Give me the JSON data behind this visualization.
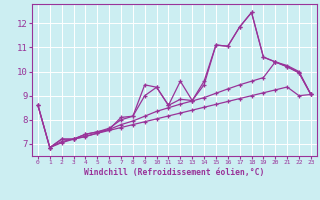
{
  "background_color": "#cceef2",
  "grid_color": "#ffffff",
  "line_color": "#993399",
  "xlabel": "Windchill (Refroidissement éolien,°C)",
  "ylabel_ticks": [
    7,
    8,
    9,
    10,
    11,
    12
  ],
  "xlim": [
    -0.5,
    23.5
  ],
  "ylim": [
    6.5,
    12.8
  ],
  "lines": [
    {
      "x": [
        0,
        1,
        2,
        3,
        4,
        5,
        6,
        7,
        8,
        9,
        10,
        11,
        12,
        13,
        14,
        15,
        16,
        17,
        18,
        19,
        20,
        21,
        22,
        23
      ],
      "y": [
        8.6,
        6.85,
        7.2,
        7.2,
        7.4,
        7.5,
        7.6,
        8.1,
        8.15,
        9.45,
        9.35,
        8.6,
        9.6,
        8.8,
        9.6,
        11.1,
        11.05,
        11.85,
        12.45,
        10.6,
        10.4,
        10.2,
        9.95,
        9.05
      ]
    },
    {
      "x": [
        0,
        1,
        2,
        3,
        4,
        5,
        6,
        7,
        8,
        9,
        10,
        11,
        12,
        13,
        14,
        15,
        16,
        17,
        18,
        19,
        20,
        21,
        22,
        23
      ],
      "y": [
        8.6,
        6.85,
        7.2,
        7.2,
        7.4,
        7.5,
        7.65,
        8.0,
        8.15,
        9.0,
        9.35,
        8.6,
        8.85,
        8.8,
        9.45,
        11.1,
        11.05,
        11.85,
        12.45,
        10.6,
        10.4,
        10.2,
        9.95,
        9.05
      ]
    },
    {
      "x": [
        0,
        1,
        2,
        3,
        4,
        5,
        6,
        7,
        8,
        9,
        10,
        11,
        12,
        13,
        14,
        15,
        16,
        17,
        18,
        19,
        20,
        21,
        22,
        23
      ],
      "y": [
        8.6,
        6.85,
        7.1,
        7.2,
        7.3,
        7.45,
        7.6,
        7.8,
        7.95,
        8.15,
        8.35,
        8.5,
        8.65,
        8.78,
        8.92,
        9.1,
        9.28,
        9.45,
        9.6,
        9.75,
        10.4,
        10.25,
        10.0,
        9.05
      ]
    },
    {
      "x": [
        1,
        2,
        3,
        4,
        5,
        6,
        7,
        8,
        9,
        10,
        11,
        12,
        13,
        14,
        15,
        16,
        17,
        18,
        19,
        20,
        21,
        22,
        23
      ],
      "y": [
        6.85,
        7.05,
        7.2,
        7.32,
        7.44,
        7.56,
        7.68,
        7.8,
        7.92,
        8.04,
        8.16,
        8.28,
        8.4,
        8.52,
        8.64,
        8.76,
        8.88,
        9.0,
        9.12,
        9.24,
        9.36,
        9.0,
        9.05
      ]
    }
  ]
}
